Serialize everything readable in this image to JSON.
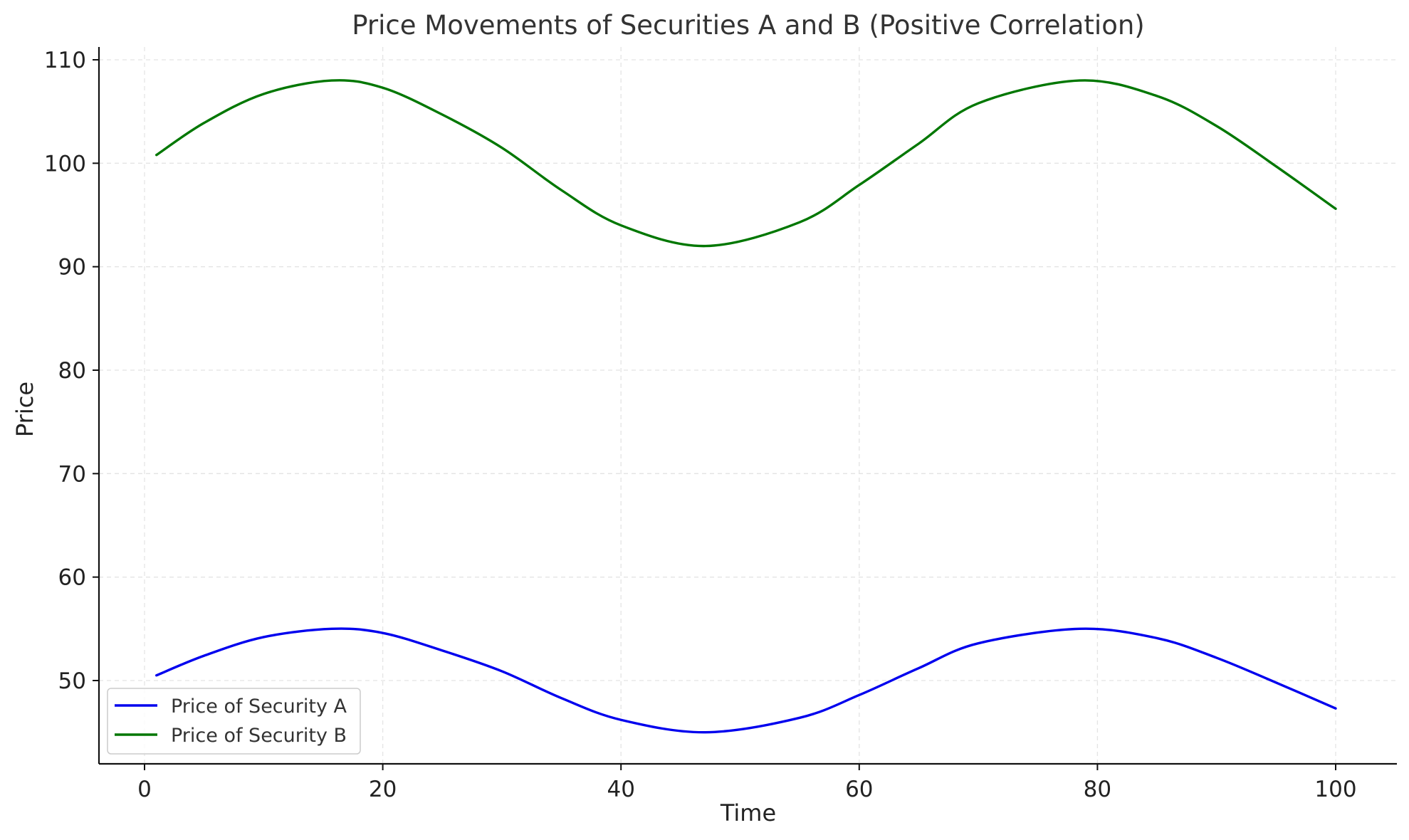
{
  "chart_data": {
    "type": "line",
    "title": "Price Movements of Securities A and B (Positive Correlation)",
    "xlabel": "Time",
    "ylabel": "Price",
    "xlim": [
      -4,
      105
    ],
    "ylim": [
      42,
      111
    ],
    "x_ticks": [
      0,
      20,
      40,
      60,
      80,
      100
    ],
    "y_ticks": [
      50,
      60,
      70,
      80,
      90,
      100,
      110
    ],
    "grid": true,
    "legend_position": "lower-left",
    "series": [
      {
        "name": "Price of Security A",
        "color": "#0000ee",
        "x": [
          1,
          5,
          10,
          15.7,
          20,
          25,
          30,
          35,
          40,
          47.1,
          55,
          60,
          65,
          70,
          78.5,
          85,
          90,
          95,
          100
        ],
        "values": [
          50.5,
          52.4,
          54.2,
          55.0,
          54.6,
          52.9,
          50.9,
          48.3,
          46.2,
          45.0,
          46.4,
          48.6,
          51.2,
          53.6,
          55.0,
          54.1,
          52.2,
          49.8,
          47.3
        ]
      },
      {
        "name": "Price of Security B",
        "color": "#007700",
        "x": [
          1,
          5,
          10,
          15.7,
          20,
          25,
          30,
          35,
          40,
          47.1,
          55,
          60,
          65,
          70,
          78.5,
          85,
          90,
          95,
          100
        ],
        "values": [
          100.8,
          103.9,
          106.7,
          108.0,
          107.3,
          104.7,
          101.5,
          97.4,
          94.0,
          92.0,
          94.3,
          97.9,
          101.9,
          105.8,
          108.0,
          106.5,
          103.6,
          99.7,
          95.6
        ]
      }
    ]
  }
}
